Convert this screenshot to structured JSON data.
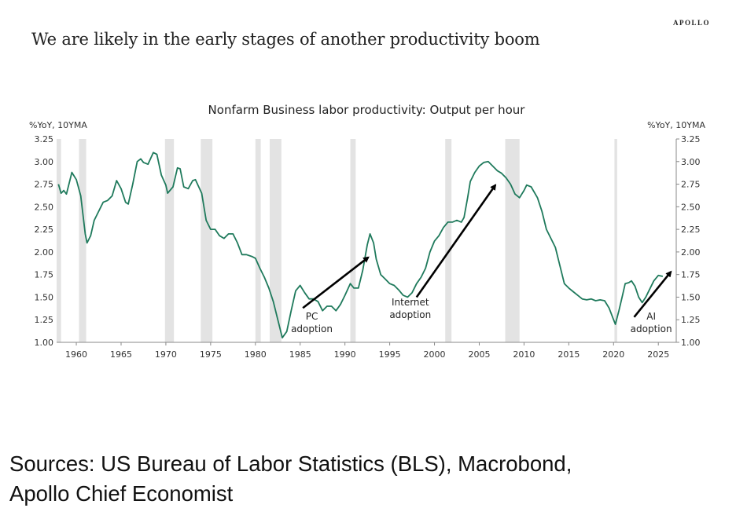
{
  "header": {
    "title": "We are likely in the early stages of another productivity boom",
    "brand": "APOLLO"
  },
  "footer": {
    "source_line1": "Sources: US Bureau of Labor Statistics (BLS), Macrobond,",
    "source_line2": "Apollo Chief Economist"
  },
  "chart_data": {
    "type": "line",
    "title": "Nonfarm Business labor productivity: Output per hour",
    "ylabel_left": "%YoY, 10YMA",
    "ylabel_right": "%YoY, 10YMA",
    "xlim": [
      1957.8,
      2027
    ],
    "ylim": [
      1.0,
      3.25
    ],
    "xticks": [
      1960,
      1965,
      1970,
      1975,
      1980,
      1985,
      1990,
      1995,
      2000,
      2005,
      2010,
      2015,
      2020,
      2025
    ],
    "yticks": [
      "1.00",
      "1.25",
      "1.50",
      "1.75",
      "2.00",
      "2.25",
      "2.50",
      "2.75",
      "3.00",
      "3.25"
    ],
    "line_color": "#1f7a5c",
    "recession_color": "#e3e3e3",
    "recessions": [
      [
        1957.7,
        1958.3
      ],
      [
        1960.3,
        1961.1
      ],
      [
        1969.9,
        1970.9
      ],
      [
        1973.9,
        1975.2
      ],
      [
        1980.0,
        1980.6
      ],
      [
        1981.6,
        1982.9
      ],
      [
        1990.6,
        1991.2
      ],
      [
        2001.2,
        2001.9
      ],
      [
        2007.9,
        2009.5
      ],
      [
        2020.1,
        2020.4
      ]
    ],
    "series": [
      {
        "x": [
          1958,
          1958.3,
          1958.6,
          1958.9,
          1959.5,
          1960,
          1960.5,
          1961,
          1961.2,
          1961.6,
          1962,
          1962.5,
          1963,
          1963.5,
          1964,
          1964.5,
          1965,
          1965.5,
          1965.8,
          1966.3,
          1966.8,
          1967.2,
          1967.5,
          1968,
          1968.6,
          1969,
          1969.5,
          1970,
          1970.2,
          1970.8,
          1971.3,
          1971.6,
          1972,
          1972.5,
          1973,
          1973.3,
          1974,
          1974.5,
          1975,
          1975.5,
          1976,
          1976.5,
          1977,
          1977.5,
          1978,
          1978.5,
          1979,
          1979.6,
          1980,
          1980.5,
          1981,
          1981.5,
          1982,
          1982.5,
          1983,
          1983.5,
          1984,
          1984.5,
          1985,
          1985.5,
          1986,
          1986.5,
          1987,
          1987.5,
          1988,
          1988.5,
          1989,
          1989.5,
          1990,
          1990.6,
          1991,
          1991.5,
          1992,
          1992.5,
          1992.8,
          1993.2,
          1993.5,
          1994,
          1994.5,
          1995,
          1995.5,
          1996,
          1996.5,
          1997,
          1997.5,
          1998,
          1998.5,
          1999,
          1999.5,
          2000,
          2000.5,
          2001,
          2001.5,
          2002,
          2002.5,
          2003,
          2003.3,
          2003.7,
          2004,
          2004.5,
          2005,
          2005.5,
          2006,
          2006.5,
          2007,
          2007.5,
          2008,
          2008.5,
          2009,
          2009.5,
          2010,
          2010.3,
          2010.8,
          2011.5,
          2012,
          2012.5,
          2013,
          2013.5,
          2014,
          2014.5,
          2015,
          2015.5,
          2016,
          2016.5,
          2017,
          2017.5,
          2018,
          2018.5,
          2019,
          2019.5,
          2020,
          2020.2,
          2020.6,
          2021,
          2021.3,
          2021.7,
          2022,
          2022.4,
          2022.8,
          2023.2,
          2023.6,
          2024,
          2024.5,
          2025,
          2025.5
        ],
        "y": [
          2.75,
          2.65,
          2.68,
          2.64,
          2.88,
          2.8,
          2.62,
          2.2,
          2.1,
          2.18,
          2.35,
          2.45,
          2.55,
          2.57,
          2.62,
          2.79,
          2.7,
          2.55,
          2.53,
          2.75,
          3.0,
          3.03,
          2.99,
          2.97,
          3.1,
          3.08,
          2.85,
          2.74,
          2.65,
          2.72,
          2.93,
          2.92,
          2.72,
          2.7,
          2.79,
          2.8,
          2.65,
          2.35,
          2.25,
          2.25,
          2.18,
          2.15,
          2.2,
          2.2,
          2.1,
          1.97,
          1.97,
          1.95,
          1.93,
          1.82,
          1.72,
          1.6,
          1.45,
          1.25,
          1.05,
          1.12,
          1.35,
          1.57,
          1.63,
          1.55,
          1.48,
          1.48,
          1.45,
          1.35,
          1.4,
          1.4,
          1.35,
          1.42,
          1.52,
          1.65,
          1.6,
          1.6,
          1.8,
          2.08,
          2.2,
          2.1,
          1.92,
          1.75,
          1.7,
          1.65,
          1.63,
          1.58,
          1.52,
          1.5,
          1.55,
          1.65,
          1.72,
          1.82,
          2.0,
          2.12,
          2.18,
          2.27,
          2.33,
          2.33,
          2.35,
          2.33,
          2.38,
          2.6,
          2.78,
          2.88,
          2.95,
          2.99,
          3.0,
          2.95,
          2.9,
          2.87,
          2.82,
          2.75,
          2.64,
          2.6,
          2.68,
          2.74,
          2.72,
          2.6,
          2.45,
          2.25,
          2.15,
          2.05,
          1.85,
          1.65,
          1.6,
          1.56,
          1.52,
          1.48,
          1.47,
          1.48,
          1.46,
          1.47,
          1.46,
          1.38,
          1.25,
          1.2,
          1.35,
          1.52,
          1.65,
          1.66,
          1.68,
          1.62,
          1.5,
          1.44,
          1.5,
          1.58,
          1.68,
          1.74,
          1.73
        ]
      }
    ],
    "annotations": [
      {
        "lines": [
          "PC",
          "adoption"
        ],
        "label_at": [
          1986.3,
          1.25
        ],
        "arrow_from": [
          1985.3,
          1.38
        ],
        "arrow_to": [
          1992.6,
          1.94
        ]
      },
      {
        "lines": [
          "Internet",
          "adoption"
        ],
        "label_at": [
          1997.3,
          1.41
        ],
        "arrow_from": [
          1998,
          1.5
        ],
        "arrow_to": [
          2006.8,
          2.74
        ]
      },
      {
        "lines": [
          "AI",
          "adoption"
        ],
        "label_at": [
          2024.2,
          1.25
        ],
        "arrow_from": [
          2022.3,
          1.28
        ],
        "arrow_to": [
          2026.4,
          1.78
        ]
      }
    ],
    "grid": false
  }
}
